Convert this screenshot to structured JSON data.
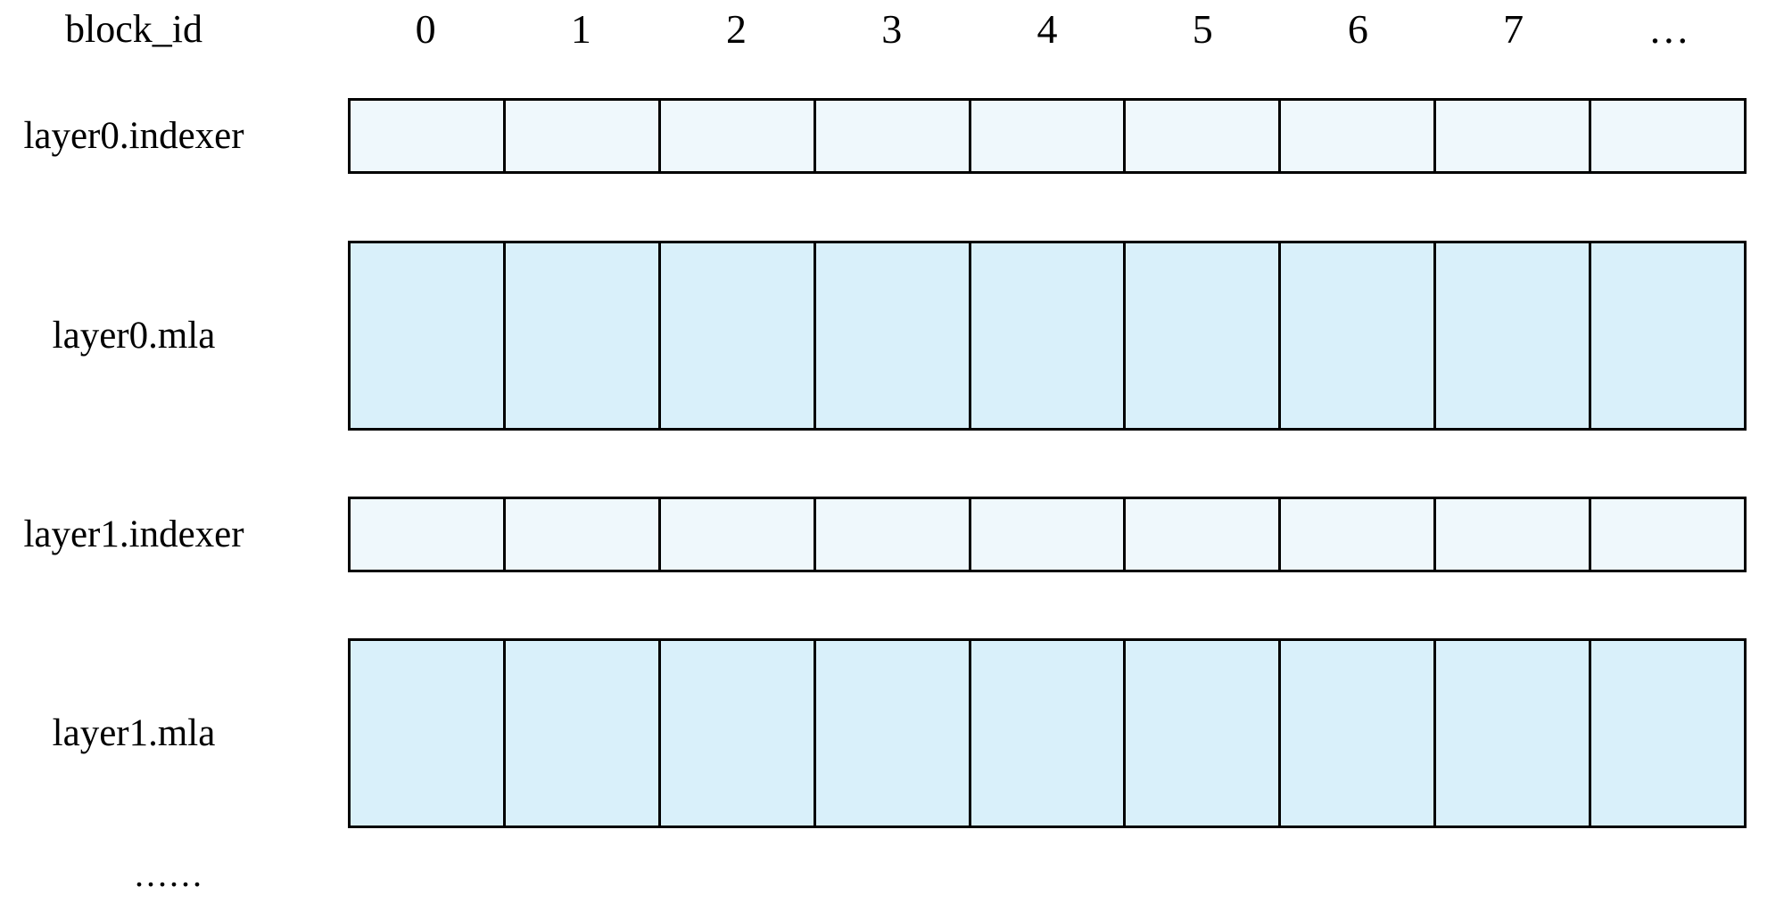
{
  "diagram": {
    "header": {
      "row_label": "block_id",
      "columns": [
        "0",
        "1",
        "2",
        "3",
        "4",
        "5",
        "6",
        "7",
        "…"
      ]
    },
    "rows": [
      {
        "label": "layer0.indexer",
        "type": "indexer",
        "cells": 9
      },
      {
        "label": "layer0.mla",
        "type": "mla",
        "cells": 9
      },
      {
        "label": "layer1.indexer",
        "type": "indexer",
        "cells": 9
      },
      {
        "label": "layer1.mla",
        "type": "mla",
        "cells": 9
      }
    ],
    "continuation": "......",
    "colors": {
      "indexer_fill": "#eff8fc",
      "mla_fill": "#d9f0fa",
      "border": "#000000",
      "background": "#ffffff",
      "text": "#000000"
    }
  }
}
